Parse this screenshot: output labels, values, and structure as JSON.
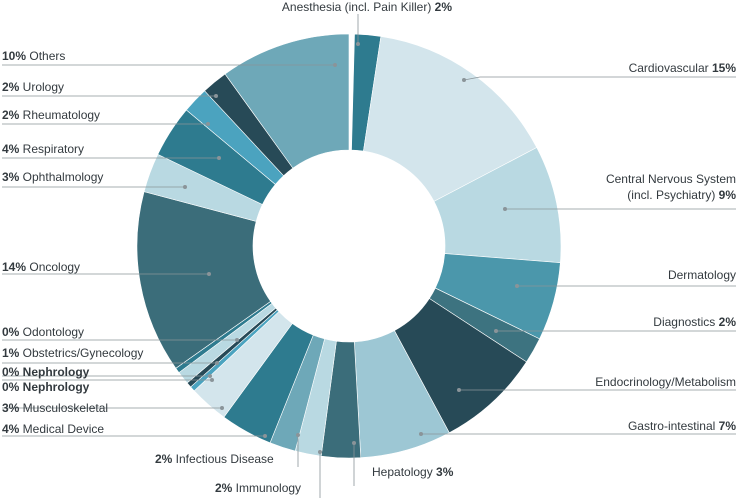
{
  "chart_data": {
    "type": "pie",
    "donut": true,
    "slices": [
      {
        "name": "Anesthesia (incl. Pain Killer)",
        "value_label": "2%",
        "value": 2,
        "color": "#2e7b8f",
        "label_first": false
      },
      {
        "name": "Cardiovascular",
        "value_label": "15%",
        "value": 15,
        "color": "#d3e5ec",
        "label_first": false
      },
      {
        "name": "Central Nervous System (incl. Psychiatry)",
        "value_label": "9%",
        "value": 9,
        "color": "#b9d9e2",
        "label_first": false
      },
      {
        "name": "Dermatology",
        "value_label": "",
        "value": 6,
        "color": "#4b97ab",
        "label_first": false
      },
      {
        "name": "Diagnostics",
        "value_label": "2%",
        "value": 2,
        "color": "#3d7380",
        "label_first": false
      },
      {
        "name": "Endocrinology/Metabolism",
        "value_label": "",
        "value": 8,
        "color": "#274a57",
        "label_first": false
      },
      {
        "name": "Gastro-intestinal",
        "value_label": "7%",
        "value": 7,
        "color": "#9dc7d4",
        "label_first": false
      },
      {
        "name": "Hepatology",
        "value_label": "3%",
        "value": 3,
        "color": "#3b6d7a",
        "label_first": false
      },
      {
        "name": "Immunology",
        "value_label": "2%",
        "value": 2,
        "color": "#b9d9e2",
        "label_first": true
      },
      {
        "name": "Infectious Disease",
        "value_label": "2%",
        "value": 2,
        "color": "#6ea8b8",
        "label_first": true
      },
      {
        "name": "Medical Device",
        "value_label": "4%",
        "value": 4,
        "color": "#2e7b8f",
        "label_first": true
      },
      {
        "name": "Musculoskeletal",
        "value_label": "3%",
        "value": 3,
        "color": "#d3e5ec",
        "label_first": true
      },
      {
        "name": "Nephrology",
        "value_label": "0%",
        "value": 0.4,
        "color": "#4ba3bf",
        "label_first": true
      },
      {
        "name": "Nephrology",
        "value_label": "0%",
        "value": 0.4,
        "color": "#274a57",
        "label_first": true
      },
      {
        "name": "Obstetrics/Gynecology",
        "value_label": "1%",
        "value": 1,
        "color": "#b9d9e2",
        "label_first": true
      },
      {
        "name": "Odontology",
        "value_label": "0%",
        "value": 0.4,
        "color": "#2e7b8f",
        "label_first": true
      },
      {
        "name": "Oncology",
        "value_label": "14%",
        "value": 14,
        "color": "#3b6d7a",
        "label_first": true
      },
      {
        "name": "Ophthalmology",
        "value_label": "3%",
        "value": 3,
        "color": "#b9d9e2",
        "label_first": true
      },
      {
        "name": "Respiratory",
        "value_label": "4%",
        "value": 4,
        "color": "#2e7b8f",
        "label_first": true
      },
      {
        "name": "Rheumatology",
        "value_label": "2%",
        "value": 2,
        "color": "#4ba3bf",
        "label_first": true
      },
      {
        "name": "Urology",
        "value_label": "2%",
        "value": 2,
        "color": "#274a57",
        "label_first": true
      },
      {
        "name": "Others",
        "value_label": "10%",
        "value": 10,
        "color": "#6ea8b8",
        "label_first": true
      }
    ]
  }
}
